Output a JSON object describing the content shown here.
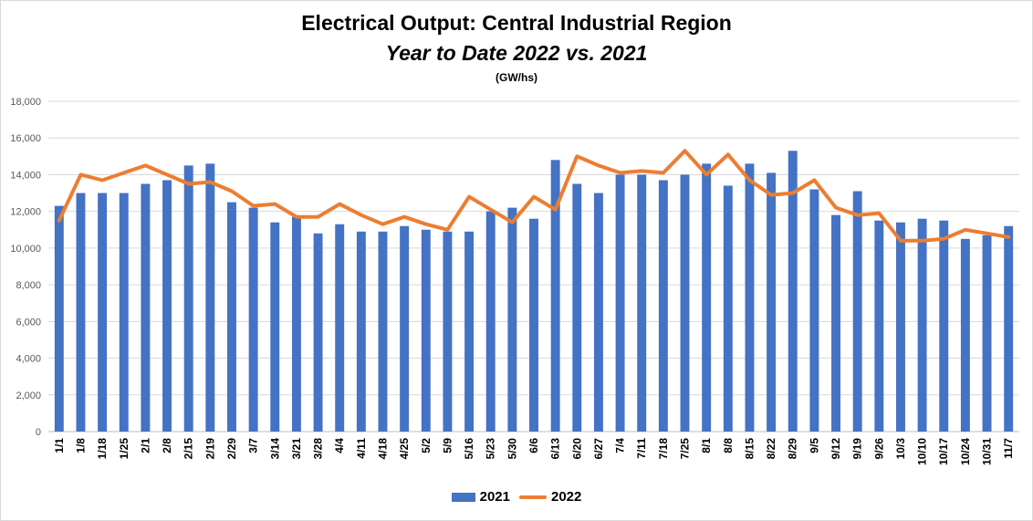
{
  "chart_data": {
    "type": "bar",
    "title": "Electrical Output:  Central Industrial Region",
    "subtitle": "Year to Date 2022 vs. 2021",
    "unit_label": "(GW/hs)",
    "xlabel": "",
    "ylabel": "",
    "ylim": [
      0,
      18000
    ],
    "yticks": [
      0,
      2000,
      4000,
      6000,
      8000,
      10000,
      12000,
      14000,
      16000,
      18000
    ],
    "ytick_labels": [
      "0",
      "2,000",
      "4,000",
      "6,000",
      "8,000",
      "10,000",
      "12,000",
      "14,000",
      "16,000",
      "18,000"
    ],
    "grid": true,
    "legend_position": "bottom",
    "categories": [
      "1/1",
      "1/8",
      "1/18",
      "1/25",
      "2/1",
      "2/8",
      "2/15",
      "2/19",
      "2/29",
      "3/7",
      "3/14",
      "3/21",
      "3/28",
      "4/4",
      "4/11",
      "4/18",
      "4/25",
      "5/2",
      "5/9",
      "5/16",
      "5/23",
      "5/30",
      "6/6",
      "6/13",
      "6/20",
      "6/27",
      "7/4",
      "7/11",
      "7/18",
      "7/25",
      "8/1",
      "8/8",
      "8/15",
      "8/22",
      "8/29",
      "9/5",
      "9/12",
      "9/19",
      "9/26",
      "10/3",
      "10/10",
      "10/17",
      "10/24",
      "10/31",
      "11/7"
    ],
    "series": [
      {
        "name": "2021",
        "type": "bar",
        "color": "#4472c4",
        "values": [
          12300,
          13000,
          13000,
          13000,
          13500,
          13700,
          14500,
          14600,
          12500,
          12200,
          11400,
          11700,
          10800,
          11300,
          10900,
          10900,
          11200,
          11000,
          10900,
          10900,
          12000,
          12200,
          11600,
          14800,
          13500,
          13000,
          14000,
          14000,
          13700,
          14000,
          14600,
          13400,
          14600,
          14100,
          15300,
          13200,
          11800,
          13100,
          11500,
          11400,
          11600,
          11500,
          10500,
          10700,
          11200
        ]
      },
      {
        "name": "2022",
        "type": "line",
        "color": "#ed7d31",
        "values": [
          11500,
          14000,
          13700,
          14100,
          14500,
          14000,
          13500,
          13600,
          13100,
          12300,
          12400,
          11700,
          11700,
          12400,
          11800,
          11300,
          11700,
          11300,
          11000,
          12800,
          12100,
          11400,
          12800,
          12100,
          15000,
          14500,
          14100,
          14200,
          14100,
          15300,
          14000,
          15100,
          13700,
          12900,
          13000,
          13700,
          12200,
          11800,
          11900,
          10400,
          10400,
          10500,
          11000,
          10800,
          10600
        ]
      }
    ]
  }
}
